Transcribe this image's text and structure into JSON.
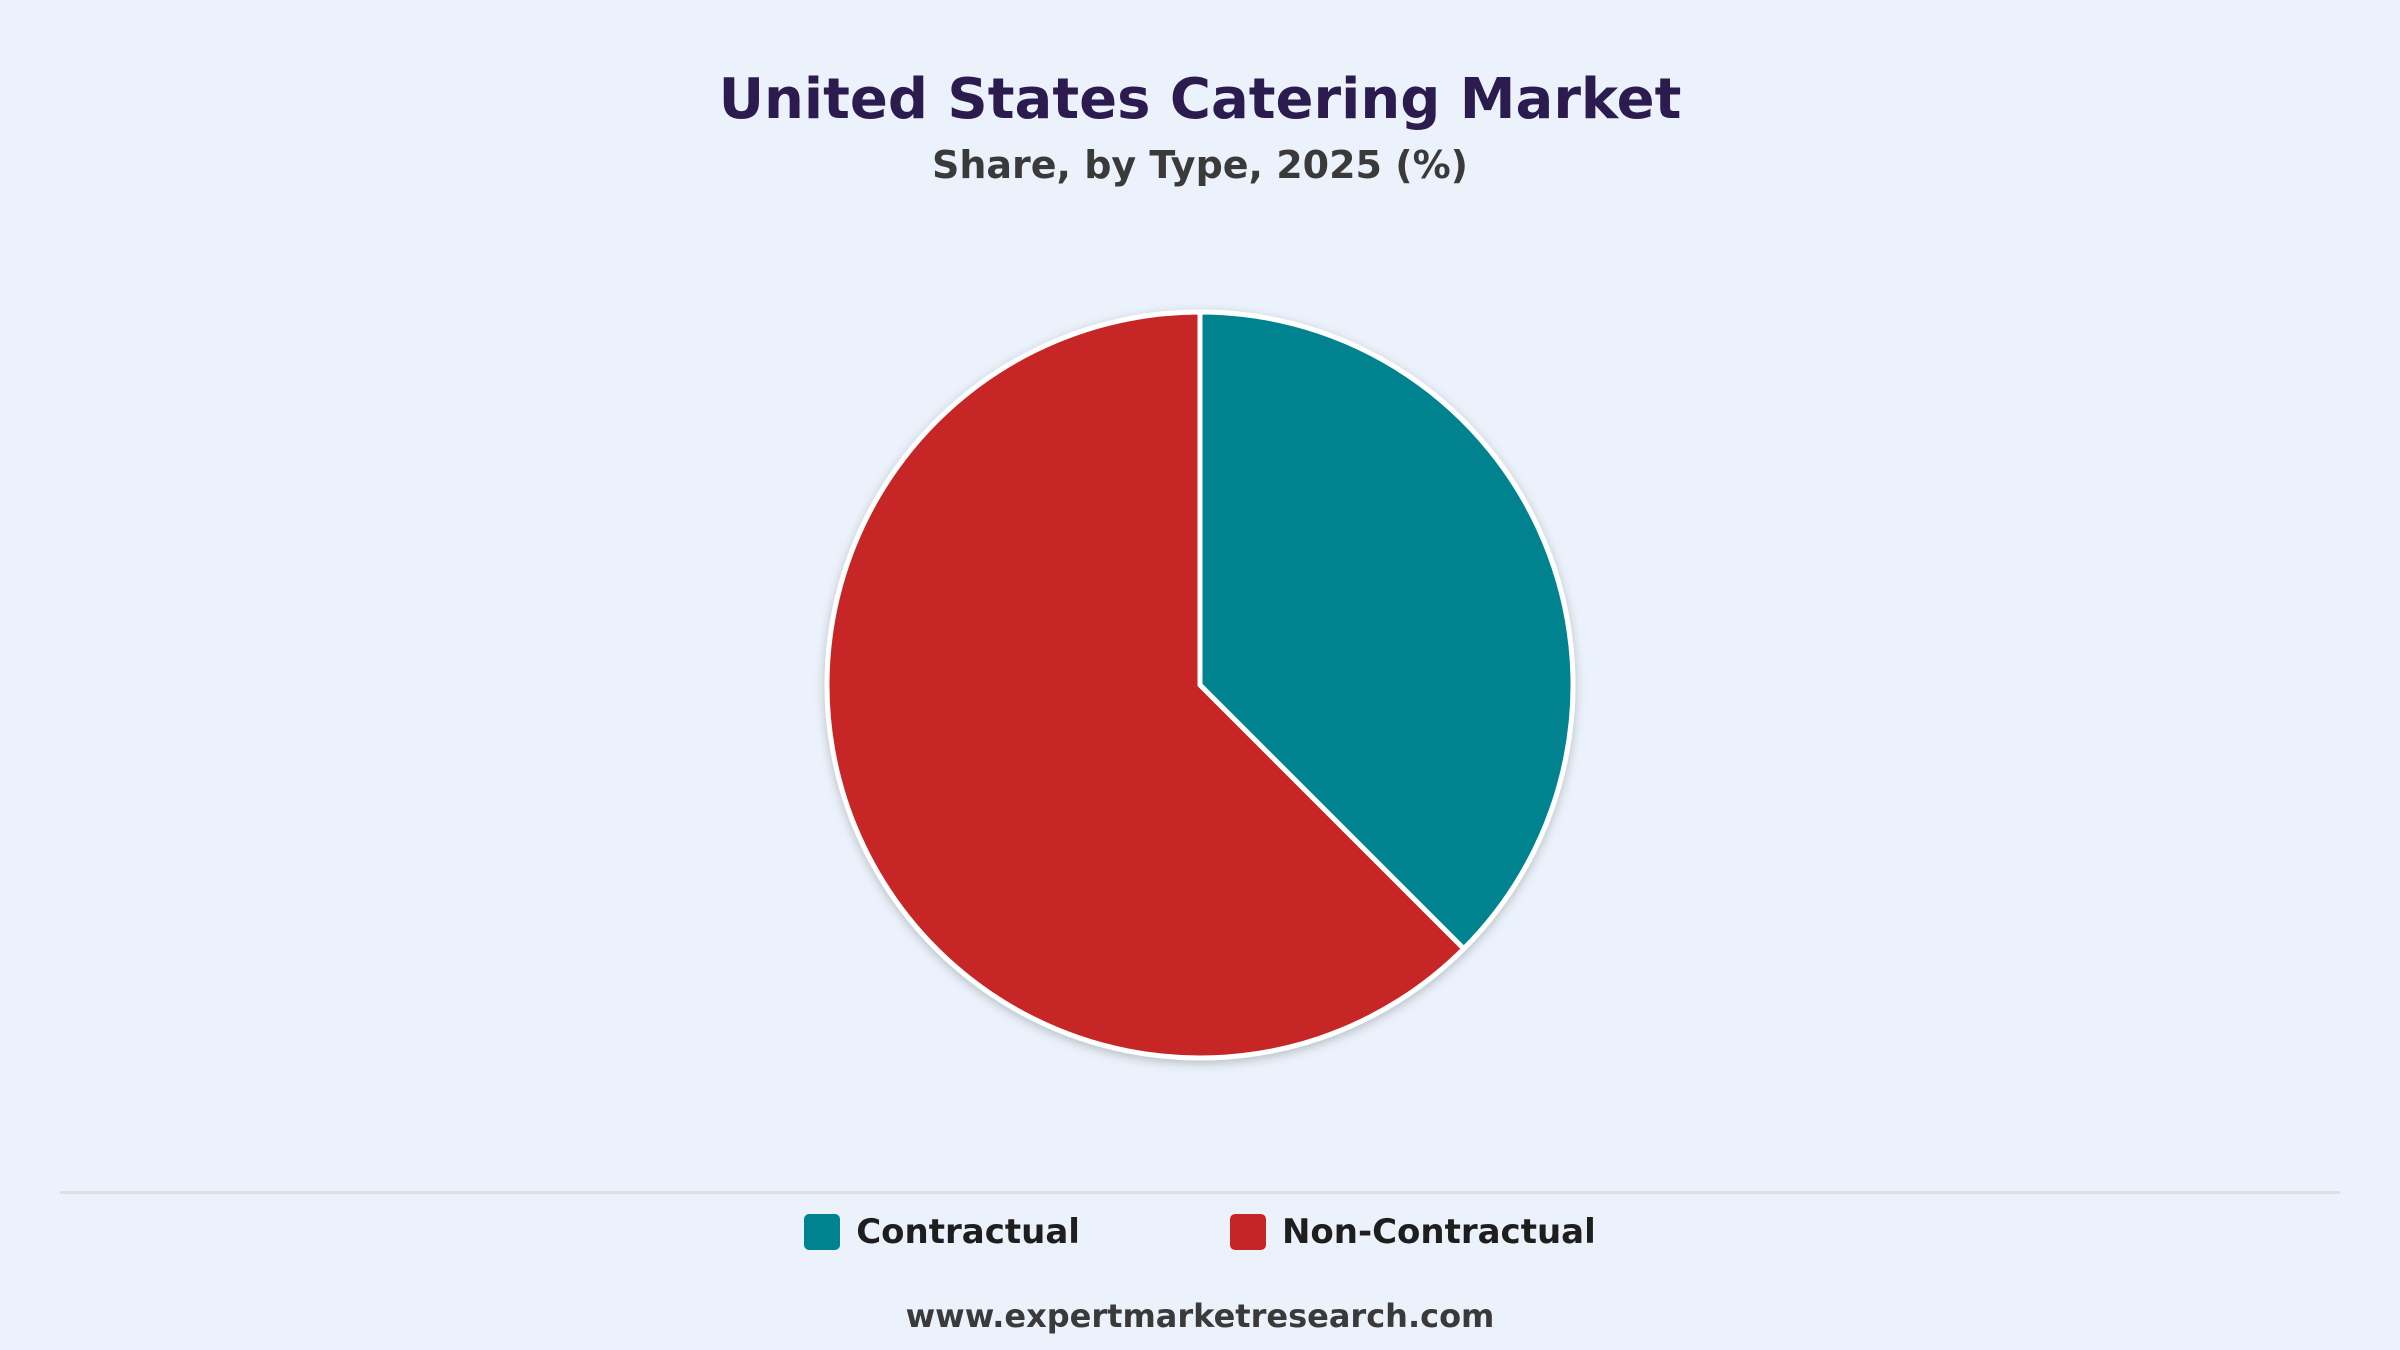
{
  "chart_data": {
    "type": "pie",
    "title": "United States Catering Market",
    "subtitle": "Share, by Type, 2025 (%)",
    "slices": [
      {
        "label": "Contractual",
        "value": 37.5,
        "color": "#00838f"
      },
      {
        "label": "Non-Contractual",
        "value": 62.5,
        "color": "#c62527"
      }
    ],
    "start_angle_deg": 0,
    "direction": "clockwise",
    "legend_position": "bottom"
  },
  "legend": {
    "items": [
      {
        "label": "Contractual",
        "color": "#00838f"
      },
      {
        "label": "Non-Contractual",
        "color": "#c62527"
      }
    ]
  },
  "footer": {
    "source": "www.expertmarketresearch.com"
  }
}
